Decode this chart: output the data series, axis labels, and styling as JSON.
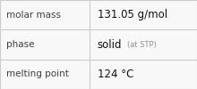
{
  "rows": [
    {
      "label": "molar mass",
      "value": "131.05 g/mol",
      "value_extra": null
    },
    {
      "label": "phase",
      "value": "solid",
      "value_extra": "(at STP)"
    },
    {
      "label": "melting point",
      "value": "124 °C",
      "value_extra": null
    }
  ],
  "background_color": "#f8f8f8",
  "border_color": "#cccccc",
  "label_color": "#404040",
  "value_color": "#111111",
  "extra_color": "#909090",
  "label_fontsize": 7.5,
  "value_fontsize": 8.5,
  "extra_fontsize": 6.0,
  "col_split": 0.455
}
